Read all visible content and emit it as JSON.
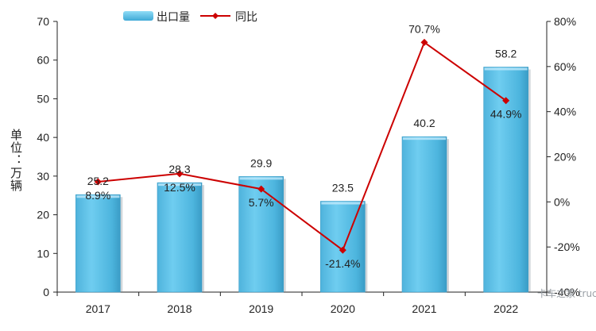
{
  "chart_data": {
    "type": "bar",
    "categories": [
      "2017",
      "2018",
      "2019",
      "2020",
      "2021",
      "2022"
    ],
    "series": [
      {
        "name": "出口量",
        "type": "bar",
        "axis": "left",
        "values": [
          25.2,
          28.3,
          29.9,
          23.5,
          40.2,
          58.2
        ],
        "labels": [
          "25.2",
          "28.3",
          "29.9",
          "23.5",
          "40.2",
          "58.2"
        ],
        "color": "#5bbfe3"
      },
      {
        "name": "同比",
        "type": "line",
        "axis": "right",
        "values": [
          8.9,
          12.5,
          5.7,
          -21.4,
          70.7,
          44.9
        ],
        "labels": [
          "8.9%",
          "12.5%",
          "5.7%",
          "-21.4%",
          "70.7%",
          "44.9%"
        ],
        "color": "#cc0000"
      }
    ],
    "ylabel": "单位：万辆",
    "ylim": [
      0,
      70
    ],
    "yticks": [
      "0",
      "10",
      "20",
      "30",
      "40",
      "50",
      "60",
      "70"
    ],
    "y2lim": [
      -40,
      80
    ],
    "y2ticks": [
      "-40%",
      "-20%",
      "0%",
      "20%",
      "40%",
      "60%",
      "80%"
    ],
    "legend": {
      "position": "top-left",
      "items": [
        "出口量",
        "同比"
      ]
    },
    "grid": false,
    "watermark": "卡车之家 truck view"
  }
}
